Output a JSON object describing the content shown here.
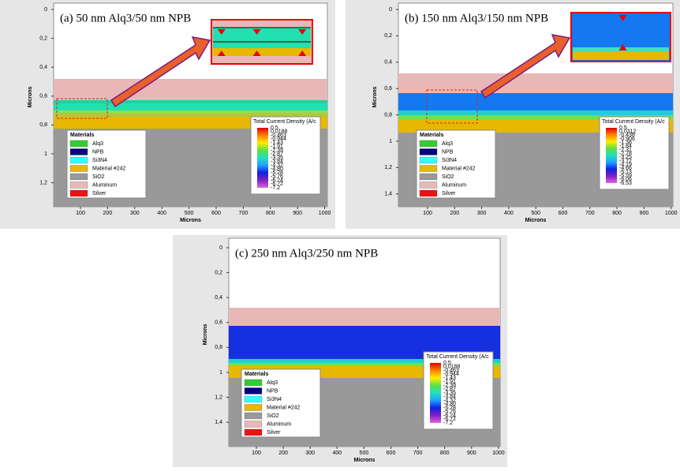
{
  "panels": [
    {
      "title": "(a) 50 nm Alq3/50 nm NPB",
      "y_label": "Microns",
      "x_label": "Microns",
      "y_ticks": [
        "0",
        "0,2",
        "0,4",
        "0,6",
        "0,8",
        "1",
        "1,2"
      ],
      "x_ticks": [
        "100",
        "200",
        "300",
        "400",
        "500",
        "600",
        "700",
        "800",
        "900",
        "1000"
      ],
      "legend_title": "Materials",
      "legend": [
        "Alq3",
        "NPB",
        "Si3N4",
        "Material #242",
        "SiO2",
        "Aluminum",
        "Silver"
      ],
      "colorbar_title": "Total Current Density (A/c",
      "colorbar_labels": [
        "0.5",
        "0.0188",
        "-0.463",
        "-0.944",
        "-1.43",
        "-1.91",
        "-2.39",
        "-2.87",
        "-3.35",
        "-3.84",
        "-4.32",
        "-4.80",
        "-5.28",
        "-5.76",
        "-6.24",
        "-6.72",
        "-7.2"
      ]
    },
    {
      "title": "(b) 150 nm Alq3/150 nm NPB",
      "y_label": "Microns",
      "x_label": "Microns",
      "y_ticks": [
        "0",
        "0,2",
        "0,4",
        "0,6",
        "0,8",
        "1",
        "1,2",
        "1,4"
      ],
      "x_ticks": [
        "100",
        "200",
        "300",
        "400",
        "500",
        "600",
        "700",
        "800",
        "900",
        "1000"
      ],
      "legend_title": "Materials",
      "legend": [
        "Alq3",
        "NPB",
        "Si3N4",
        "Material #242",
        "SiO2",
        "Aluminum",
        "Silver"
      ],
      "colorbar_title": "Total Current Density (A/c",
      "colorbar_labels": [
        "0.5",
        "0.0312",
        "-0.438",
        "-0.906",
        "-1.38",
        "-1.84",
        "-2.31",
        "-2.78",
        "-3.25",
        "-3.72",
        "-4.19",
        "-4.66",
        "-5.13",
        "-5.59",
        "-6.06",
        "-6.53"
      ]
    },
    {
      "title": "(c) 250 nm Alq3/250 nm NPB",
      "y_label": "Microns",
      "x_label": "Microns",
      "y_ticks": [
        "0",
        "0,2",
        "0,4",
        "0,6",
        "0,8",
        "1",
        "1,2",
        "1,4"
      ],
      "x_ticks": [
        "100",
        "200",
        "300",
        "400",
        "500",
        "600",
        "700",
        "800",
        "900",
        "1000"
      ],
      "legend_title": "Materials",
      "legend": [
        "Alq3",
        "NPB",
        "Si3N4",
        "Material #242",
        "SiO2",
        "Aluminum",
        "Silver"
      ],
      "colorbar_title": "Total Current Density (A/c",
      "colorbar_labels": [
        "0.5",
        "0.0188",
        "-0.463",
        "-0.944",
        "-1.43",
        "-1.91",
        "-2.39",
        "-2.87",
        "-3.35",
        "-3.84",
        "-4.32",
        "-4.80",
        "-5.28",
        "-5.76",
        "-6.24",
        "-6.72",
        "-7.2"
      ]
    }
  ]
}
